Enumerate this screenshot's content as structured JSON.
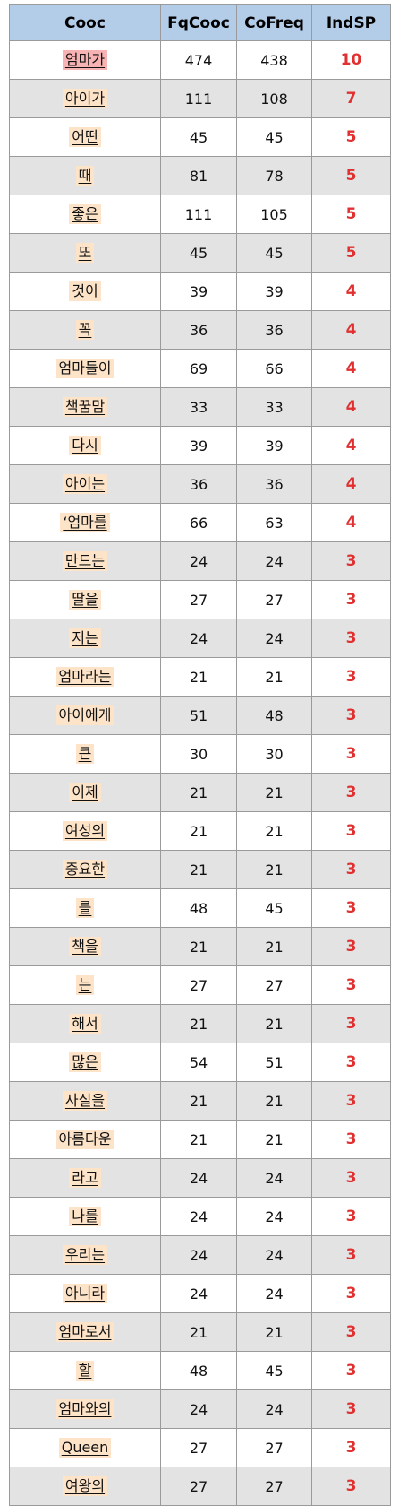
{
  "table": {
    "headers": {
      "cooc": "Cooc",
      "fqcooc": "FqCooc",
      "cofreq": "CoFreq",
      "indsp": "IndSP"
    },
    "colors": {
      "header_bg": "#b3cce8",
      "word_bg": "#fde3c8",
      "word_highlight_bg": "#f7b3b3",
      "indsp_text": "#e03030",
      "even_row_bg": "#e3e3e3"
    },
    "rows": [
      {
        "cooc": "엄마가",
        "fqcooc": "474",
        "cofreq": "438",
        "indsp": "10"
      },
      {
        "cooc": "아이가",
        "fqcooc": "111",
        "cofreq": "108",
        "indsp": "7"
      },
      {
        "cooc": "어떤",
        "fqcooc": "45",
        "cofreq": "45",
        "indsp": "5"
      },
      {
        "cooc": "때",
        "fqcooc": "81",
        "cofreq": "78",
        "indsp": "5"
      },
      {
        "cooc": "좋은",
        "fqcooc": "111",
        "cofreq": "105",
        "indsp": "5"
      },
      {
        "cooc": "또",
        "fqcooc": "45",
        "cofreq": "45",
        "indsp": "5"
      },
      {
        "cooc": "것이",
        "fqcooc": "39",
        "cofreq": "39",
        "indsp": "4"
      },
      {
        "cooc": "꼭",
        "fqcooc": "36",
        "cofreq": "36",
        "indsp": "4"
      },
      {
        "cooc": "엄마들이",
        "fqcooc": "69",
        "cofreq": "66",
        "indsp": "4"
      },
      {
        "cooc": "책꿈맘",
        "fqcooc": "33",
        "cofreq": "33",
        "indsp": "4"
      },
      {
        "cooc": "다시",
        "fqcooc": "39",
        "cofreq": "39",
        "indsp": "4"
      },
      {
        "cooc": "아이는",
        "fqcooc": "36",
        "cofreq": "36",
        "indsp": "4"
      },
      {
        "cooc": "‘엄마를",
        "fqcooc": "66",
        "cofreq": "63",
        "indsp": "4"
      },
      {
        "cooc": "만드는",
        "fqcooc": "24",
        "cofreq": "24",
        "indsp": "3"
      },
      {
        "cooc": "딸을",
        "fqcooc": "27",
        "cofreq": "27",
        "indsp": "3"
      },
      {
        "cooc": "저는",
        "fqcooc": "24",
        "cofreq": "24",
        "indsp": "3"
      },
      {
        "cooc": "엄마라는",
        "fqcooc": "21",
        "cofreq": "21",
        "indsp": "3"
      },
      {
        "cooc": "아이에게",
        "fqcooc": "51",
        "cofreq": "48",
        "indsp": "3"
      },
      {
        "cooc": "큰",
        "fqcooc": "30",
        "cofreq": "30",
        "indsp": "3"
      },
      {
        "cooc": "이제",
        "fqcooc": "21",
        "cofreq": "21",
        "indsp": "3"
      },
      {
        "cooc": "여성의",
        "fqcooc": "21",
        "cofreq": "21",
        "indsp": "3"
      },
      {
        "cooc": "중요한",
        "fqcooc": "21",
        "cofreq": "21",
        "indsp": "3"
      },
      {
        "cooc": "를",
        "fqcooc": "48",
        "cofreq": "45",
        "indsp": "3"
      },
      {
        "cooc": "책을",
        "fqcooc": "21",
        "cofreq": "21",
        "indsp": "3"
      },
      {
        "cooc": "는",
        "fqcooc": "27",
        "cofreq": "27",
        "indsp": "3"
      },
      {
        "cooc": "해서",
        "fqcooc": "21",
        "cofreq": "21",
        "indsp": "3"
      },
      {
        "cooc": "많은",
        "fqcooc": "54",
        "cofreq": "51",
        "indsp": "3"
      },
      {
        "cooc": "사실을",
        "fqcooc": "21",
        "cofreq": "21",
        "indsp": "3"
      },
      {
        "cooc": "아름다운",
        "fqcooc": "21",
        "cofreq": "21",
        "indsp": "3"
      },
      {
        "cooc": "라고",
        "fqcooc": "24",
        "cofreq": "24",
        "indsp": "3"
      },
      {
        "cooc": "나를",
        "fqcooc": "24",
        "cofreq": "24",
        "indsp": "3"
      },
      {
        "cooc": "우리는",
        "fqcooc": "24",
        "cofreq": "24",
        "indsp": "3"
      },
      {
        "cooc": "아니라",
        "fqcooc": "24",
        "cofreq": "24",
        "indsp": "3"
      },
      {
        "cooc": "엄마로서",
        "fqcooc": "21",
        "cofreq": "21",
        "indsp": "3"
      },
      {
        "cooc": "할",
        "fqcooc": "48",
        "cofreq": "45",
        "indsp": "3"
      },
      {
        "cooc": "엄마와의",
        "fqcooc": "24",
        "cofreq": "24",
        "indsp": "3"
      },
      {
        "cooc": "Queen",
        "fqcooc": "27",
        "cofreq": "27",
        "indsp": "3"
      },
      {
        "cooc": "여왕의",
        "fqcooc": "27",
        "cofreq": "27",
        "indsp": "3"
      }
    ]
  }
}
